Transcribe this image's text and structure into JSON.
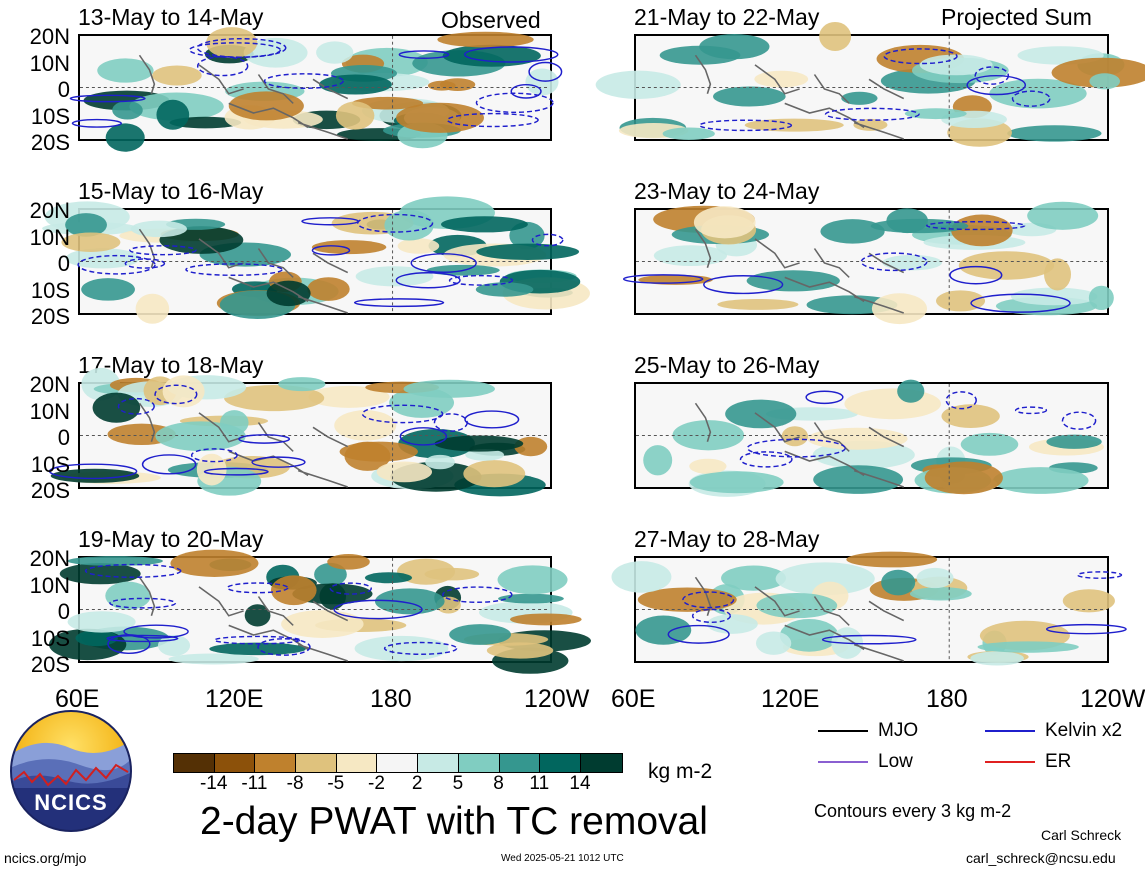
{
  "panels_left": [
    {
      "title": "13-May to 14-May"
    },
    {
      "title": "15-May to 16-May"
    },
    {
      "title": "17-May to 18-May"
    },
    {
      "title": "19-May to 20-May"
    }
  ],
  "panels_right": [
    {
      "title": "21-May to 22-May"
    },
    {
      "title": "23-May to 24-May"
    },
    {
      "title": "25-May to 26-May"
    },
    {
      "title": "27-May to 28-May"
    }
  ],
  "column_labels": {
    "observed": "Observed",
    "projected": "Projected Sum"
  },
  "lat_labels": [
    "20N",
    "10N",
    "0",
    "10S",
    "20S"
  ],
  "lon_labels": [
    "60E",
    "120E",
    "180",
    "120W"
  ],
  "right_lon_labels": [
    "60E",
    "120E",
    "180",
    "120W"
  ],
  "colorbar": {
    "ticks": [
      "-14",
      "-11",
      "-8",
      "-5",
      "-2",
      "2",
      "5",
      "8",
      "11",
      "14"
    ],
    "colors": [
      "#543005",
      "#8c510a",
      "#bf812d",
      "#dfc27d",
      "#f6e8c3",
      "#f5f5f5",
      "#c7eae5",
      "#80cdc1",
      "#35978f",
      "#01665e",
      "#003c30"
    ],
    "units": "kg m-2"
  },
  "title": "2-day PWAT with TC removal",
  "legend": {
    "items": [
      {
        "label": "MJO",
        "color": "#000000"
      },
      {
        "label": "Kelvin x2",
        "color": "#1f1fcc"
      },
      {
        "label": "Low",
        "color": "#8a5fd1"
      },
      {
        "label": "ER",
        "color": "#e02020"
      }
    ],
    "contours_note": "Contours every 3 kg m-2"
  },
  "logo": {
    "text": "NCICS"
  },
  "footer": {
    "left": "ncics.org/mjo",
    "center": "Wed 2025-05-21 1012 UTC",
    "author": "Carl Schreck",
    "email": "carl_schreck@ncsu.edu"
  }
}
